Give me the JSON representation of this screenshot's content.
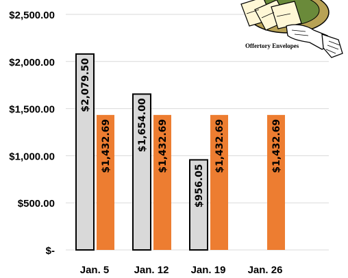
{
  "chart_data": {
    "type": "bar",
    "categories": [
      "Jan. 5",
      "Jan. 12",
      "Jan. 19",
      "Jan. 26"
    ],
    "series": [
      {
        "values": [
          2079.5,
          1654.0,
          956.05,
          null
        ],
        "labels": [
          "$2,079.50",
          "$1,654.00",
          "$956.05",
          ""
        ],
        "color": "#d9d9d9"
      },
      {
        "values": [
          1432.69,
          1432.69,
          1432.69,
          1432.69
        ],
        "labels": [
          "$1,432.69",
          "$1,432.69",
          "$1,432.69",
          "$1,432.69"
        ],
        "color": "#ed7d31"
      }
    ],
    "yticks": [
      0,
      500,
      1000,
      1500,
      2000,
      2500
    ],
    "ytick_labels": [
      "$-",
      "$500.00",
      "$1,000.00",
      "$1,500.00",
      "$2,000.00",
      "$2,500.00"
    ],
    "ylim": [
      0,
      2500
    ],
    "grid": true,
    "title": "",
    "xlabel": "",
    "ylabel": ""
  },
  "illustration": {
    "caption": "Offertory Envelopes",
    "icon": "offering-plate-hand-icon"
  },
  "colors": {
    "collection_fill": "#d9d9d9",
    "collection_stroke": "#000000",
    "budget_fill": "#ed7d31",
    "grid": "#d9d9d9"
  }
}
